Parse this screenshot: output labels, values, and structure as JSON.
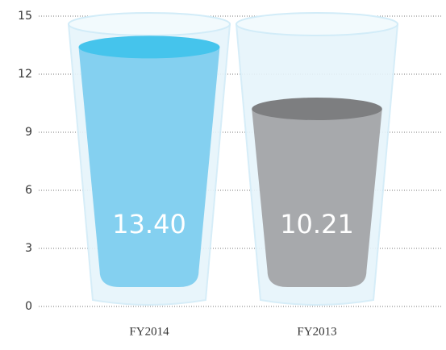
{
  "chart_data": {
    "type": "glass",
    "categories": [
      "FY2014",
      "FY2013"
    ],
    "values": [
      13.4,
      10.21
    ],
    "value_labels": [
      "13.40",
      "10.21"
    ],
    "colors": [
      "#84d0f0",
      "#a7a9ac"
    ],
    "surface_colors": [
      "#45c4ec",
      "#7d7e80"
    ],
    "ylim": [
      0,
      15
    ],
    "yticks": [
      0,
      3,
      6,
      9,
      12,
      15
    ],
    "grid": true
  }
}
